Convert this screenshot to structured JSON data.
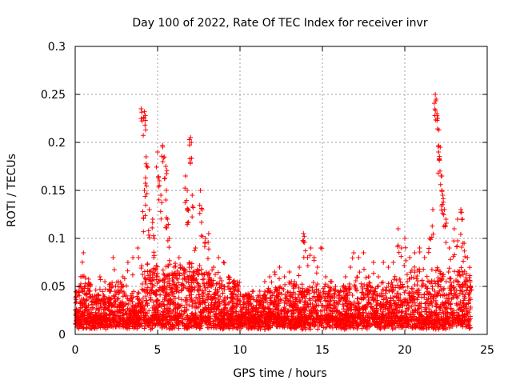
{
  "chart_data": {
    "type": "scatter",
    "title": "Day 100 of 2022, Rate Of TEC Index for receiver invr",
    "xlabel": "GPS time / hours",
    "ylabel": "ROTI / TECUs",
    "xlim": [
      0,
      25
    ],
    "ylim": [
      0,
      0.3
    ],
    "x_ticks": [
      0,
      5,
      10,
      15,
      20,
      25
    ],
    "x_tick_labels": [
      "0",
      "5",
      "10",
      "15",
      "20",
      "25"
    ],
    "y_ticks": [
      0,
      0.05,
      0.1,
      0.15,
      0.2,
      0.25,
      0.3
    ],
    "y_tick_labels": [
      "0",
      "0.05",
      "0.1",
      "0.15",
      "0.2",
      "0.25",
      "0.3"
    ],
    "grid": true,
    "marker": "+",
    "series_color": "#ff0000",
    "series": [
      {
        "name": "ROTI",
        "points": [
          [
            0.05,
            0.02
          ],
          [
            0.2,
            0.045
          ],
          [
            0.35,
            0.06
          ],
          [
            0.5,
            0.085
          ],
          [
            0.6,
            0.05
          ],
          [
            0.9,
            0.045
          ],
          [
            1.2,
            0.04
          ],
          [
            1.5,
            0.06
          ],
          [
            1.8,
            0.055
          ],
          [
            2.1,
            0.05
          ],
          [
            2.3,
            0.08
          ],
          [
            2.6,
            0.05
          ],
          [
            2.9,
            0.06
          ],
          [
            3.2,
            0.075
          ],
          [
            3.5,
            0.08
          ],
          [
            3.8,
            0.09
          ],
          [
            4.0,
            0.235
          ],
          [
            4.2,
            0.232
          ],
          [
            4.25,
            0.228
          ],
          [
            4.3,
            0.185
          ],
          [
            4.35,
            0.175
          ],
          [
            4.2,
            0.15
          ],
          [
            4.1,
            0.128
          ],
          [
            4.5,
            0.13
          ],
          [
            4.7,
            0.12
          ],
          [
            4.8,
            0.1
          ],
          [
            5.0,
            0.19
          ],
          [
            5.1,
            0.16
          ],
          [
            5.2,
            0.145
          ],
          [
            5.3,
            0.197
          ],
          [
            5.4,
            0.185
          ],
          [
            5.5,
            0.175
          ],
          [
            5.5,
            0.14
          ],
          [
            5.6,
            0.12
          ],
          [
            5.7,
            0.1
          ],
          [
            6.0,
            0.07
          ],
          [
            6.3,
            0.08
          ],
          [
            6.5,
            0.07
          ],
          [
            6.7,
            0.165
          ],
          [
            6.8,
            0.15
          ],
          [
            6.85,
            0.13
          ],
          [
            7.0,
            0.205
          ],
          [
            7.05,
            0.2
          ],
          [
            7.1,
            0.145
          ],
          [
            7.3,
            0.09
          ],
          [
            7.6,
            0.15
          ],
          [
            7.7,
            0.13
          ],
          [
            7.9,
            0.1
          ],
          [
            8.1,
            0.105
          ],
          [
            8.4,
            0.07
          ],
          [
            8.7,
            0.08
          ],
          [
            9.0,
            0.075
          ],
          [
            9.3,
            0.06
          ],
          [
            9.6,
            0.055
          ],
          [
            9.9,
            0.05
          ],
          [
            10.2,
            0.04
          ],
          [
            10.5,
            0.035
          ],
          [
            10.8,
            0.045
          ],
          [
            11.2,
            0.045
          ],
          [
            11.5,
            0.055
          ],
          [
            11.8,
            0.06
          ],
          [
            12.1,
            0.065
          ],
          [
            12.4,
            0.07
          ],
          [
            12.7,
            0.06
          ],
          [
            13.0,
            0.065
          ],
          [
            13.3,
            0.055
          ],
          [
            13.6,
            0.07
          ],
          [
            13.85,
            0.105
          ],
          [
            13.9,
            0.102
          ],
          [
            14.1,
            0.08
          ],
          [
            14.3,
            0.09
          ],
          [
            14.5,
            0.08
          ],
          [
            14.7,
            0.07
          ],
          [
            14.9,
            0.09
          ],
          [
            15.2,
            0.06
          ],
          [
            15.5,
            0.055
          ],
          [
            15.8,
            0.05
          ],
          [
            16.1,
            0.045
          ],
          [
            16.4,
            0.06
          ],
          [
            16.7,
            0.07
          ],
          [
            16.9,
            0.085
          ],
          [
            17.2,
            0.08
          ],
          [
            17.5,
            0.085
          ],
          [
            17.8,
            0.06
          ],
          [
            18.1,
            0.075
          ],
          [
            18.4,
            0.06
          ],
          [
            18.7,
            0.075
          ],
          [
            19.0,
            0.07
          ],
          [
            19.3,
            0.075
          ],
          [
            19.6,
            0.11
          ],
          [
            19.8,
            0.09
          ],
          [
            20.0,
            0.1
          ],
          [
            20.3,
            0.08
          ],
          [
            20.6,
            0.085
          ],
          [
            20.9,
            0.09
          ],
          [
            21.2,
            0.08
          ],
          [
            21.5,
            0.1
          ],
          [
            21.7,
            0.13
          ],
          [
            21.85,
            0.25
          ],
          [
            21.9,
            0.245
          ],
          [
            21.95,
            0.23
          ],
          [
            22.0,
            0.225
          ],
          [
            22.05,
            0.19
          ],
          [
            22.15,
            0.195
          ],
          [
            22.2,
            0.165
          ],
          [
            22.25,
            0.15
          ],
          [
            22.3,
            0.145
          ],
          [
            22.4,
            0.13
          ],
          [
            22.5,
            0.12
          ],
          [
            22.7,
            0.09
          ],
          [
            23.0,
            0.11
          ],
          [
            23.2,
            0.12
          ],
          [
            23.4,
            0.13
          ],
          [
            23.5,
            0.12
          ],
          [
            23.6,
            0.095
          ],
          [
            23.8,
            0.08
          ],
          [
            24.0,
            0.05
          ]
        ]
      }
    ],
    "noise_seed": 100
  }
}
